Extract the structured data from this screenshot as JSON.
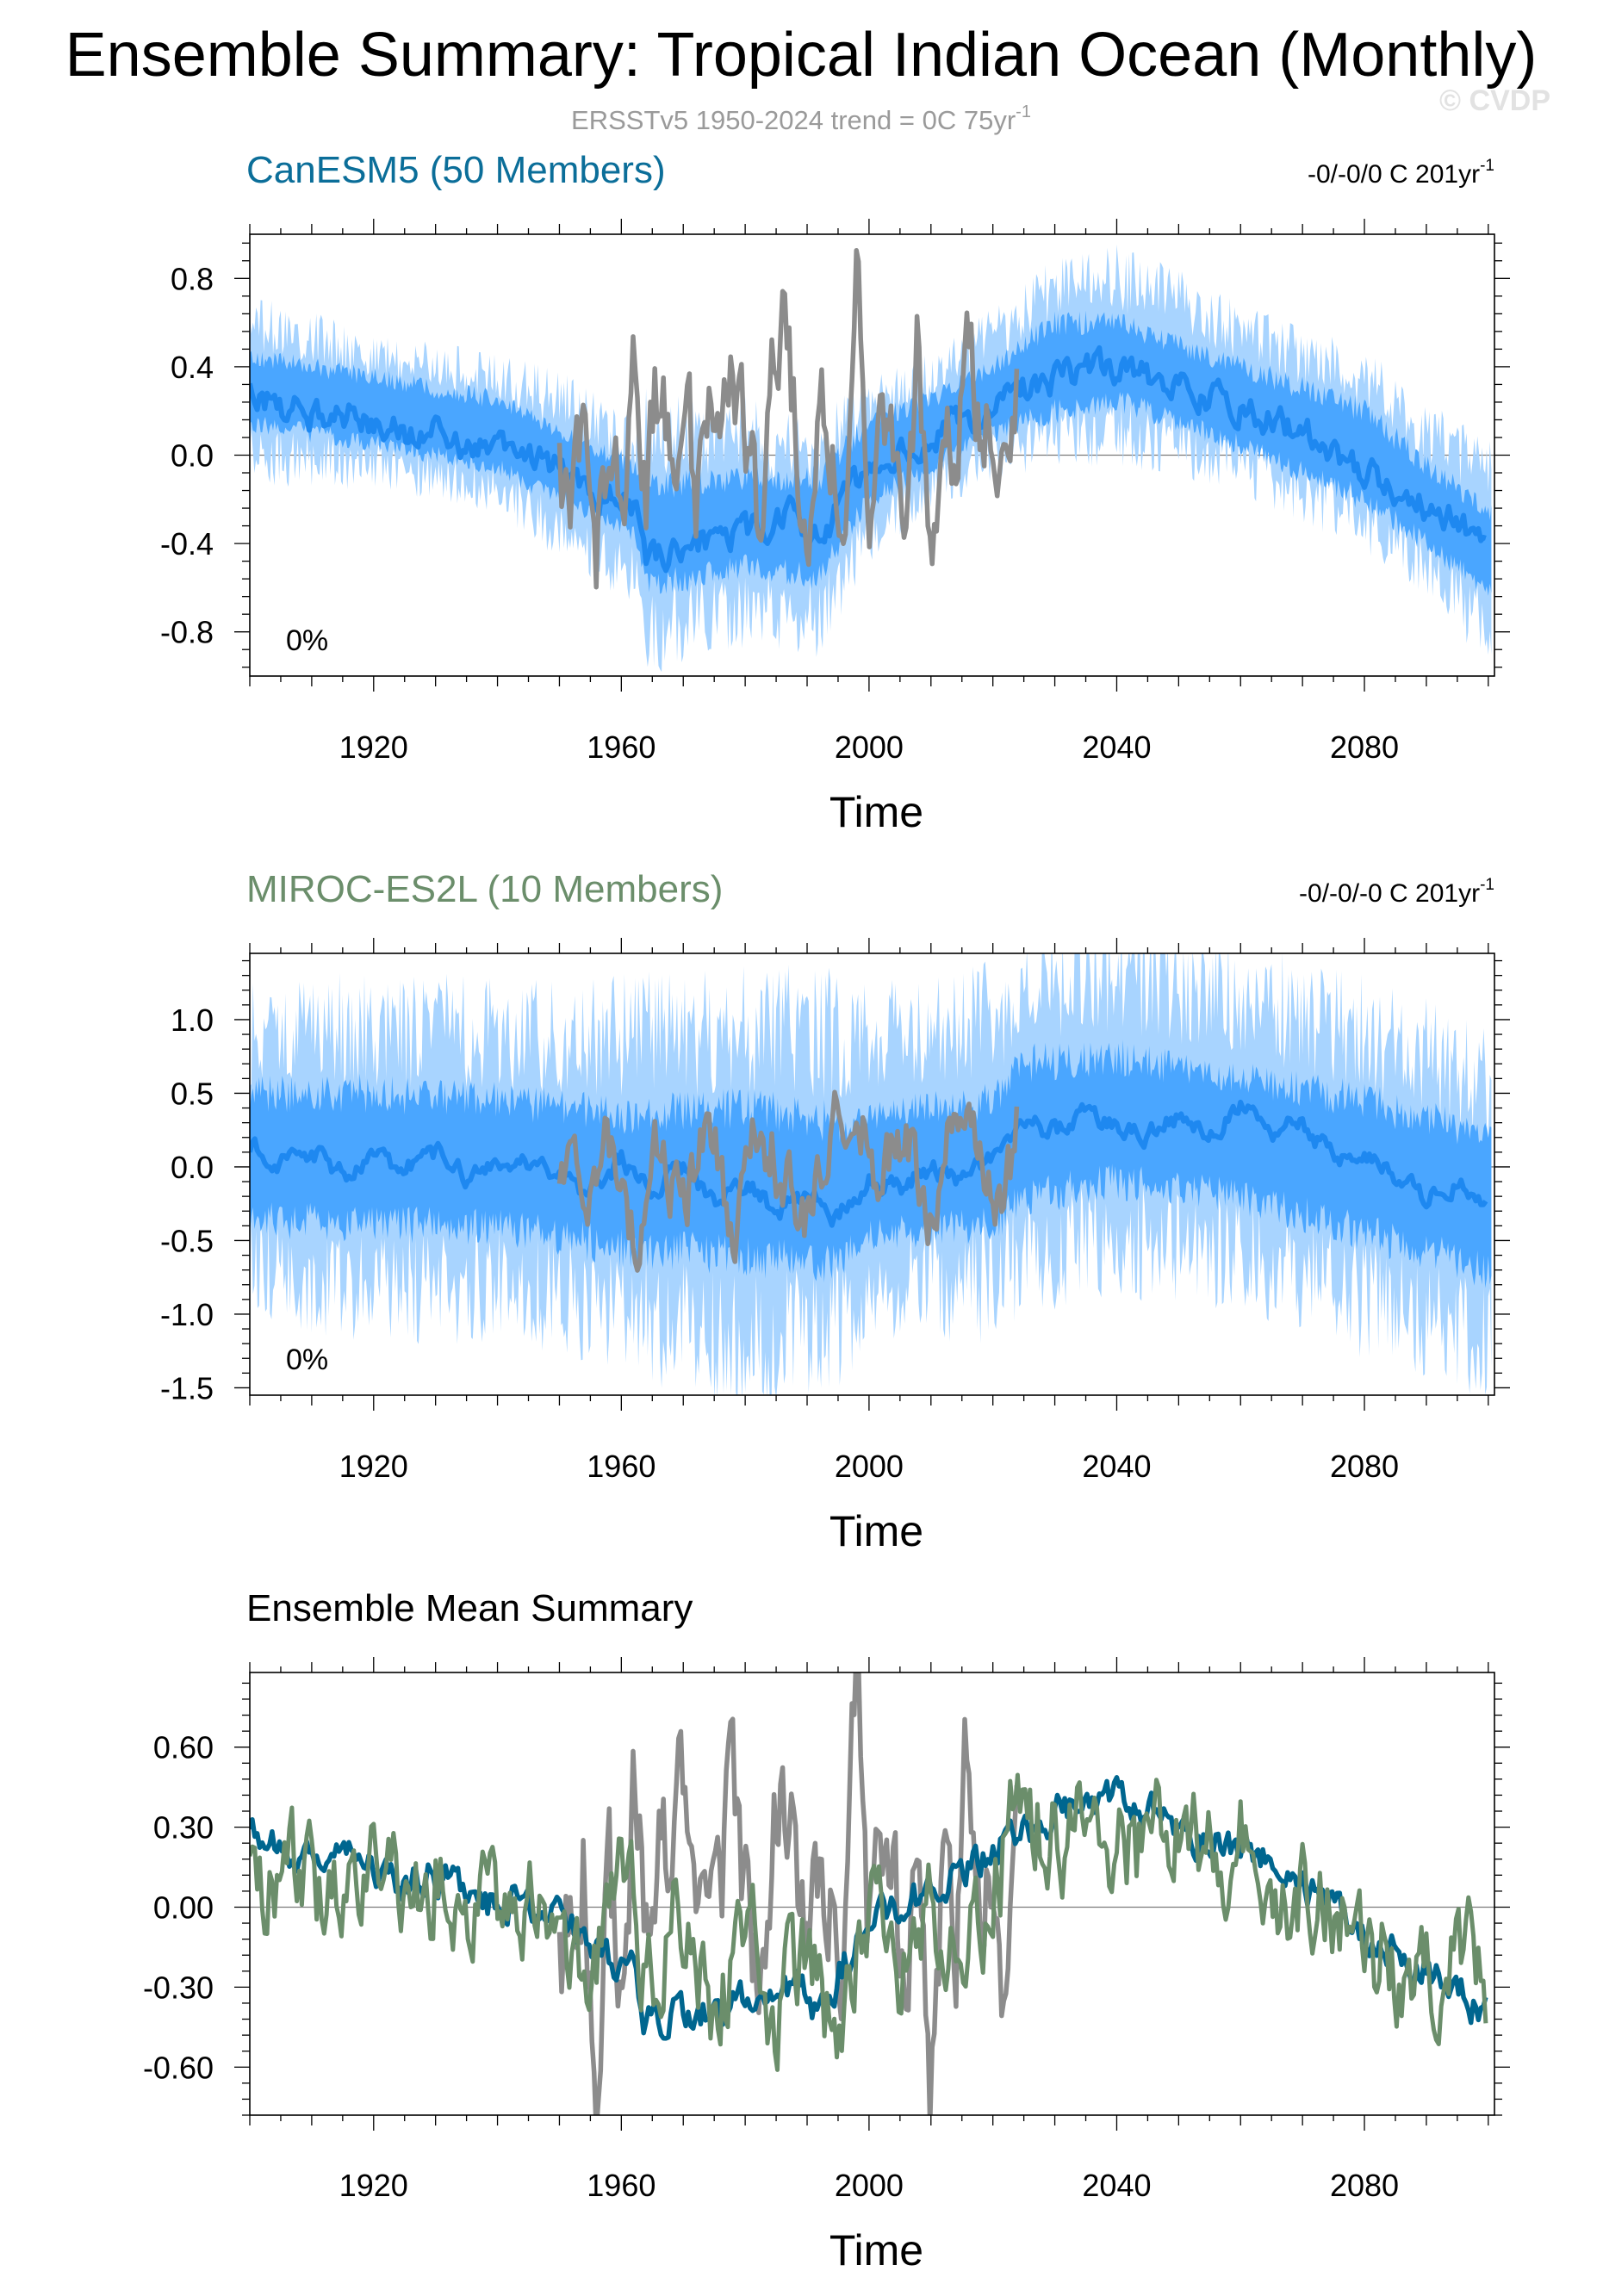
{
  "figure": {
    "title": "Ensemble Summary: Tropical Indian Ocean (Monthly)",
    "subtitle": "ERSSTv5 1950-2024 trend = 0C 75yr",
    "subtitle_sup": "-1",
    "watermark": "© CVDP"
  },
  "colors": {
    "obs": "#8c8c8c",
    "spread_outer": "#a8d4ff",
    "spread_inner": "#4aa6ff",
    "ens_mean": "#1e88f0",
    "canesm_title": "#0b6e99",
    "miroc_title": "#6b8e6b",
    "canesm_mean": "#00668f",
    "miroc_mean": "#6b8e6b",
    "black": "#000000"
  },
  "chart_data": [
    {
      "type": "line",
      "title": "CanESM5 (50 Members)",
      "trend_label": "-0/-0/0 C 201yr",
      "trend_sup": "-1",
      "percent_label": "0%",
      "xlabel": "Time",
      "ylabel": "",
      "xlim": [
        1900,
        2101
      ],
      "ylim": [
        -1.0,
        1.0
      ],
      "xticks": [
        1920,
        1960,
        2000,
        2040,
        2080
      ],
      "yticks": [
        -0.8,
        -0.4,
        0.0,
        0.4,
        0.8
      ],
      "ytick_labels": [
        "-0.8",
        "-0.4",
        "0.0",
        "0.4",
        "0.8"
      ],
      "series": [
        {
          "name": "Ensemble spread (full range)",
          "kind": "band",
          "x": [
            1900,
            1920,
            1940,
            1950,
            1962,
            1964,
            1980,
            1992,
            2000,
            2010,
            2020,
            2030,
            2040,
            2050,
            2060,
            2080,
            2090,
            2100
          ],
          "lower": [
            0.0,
            -0.05,
            -0.15,
            -0.35,
            -0.55,
            -0.8,
            -0.7,
            -0.75,
            -0.35,
            -0.15,
            0.0,
            0.1,
            0.1,
            0.05,
            -0.05,
            -0.3,
            -0.5,
            -0.8
          ],
          "upper": [
            0.6,
            0.45,
            0.35,
            0.25,
            0.05,
            0.1,
            0.1,
            0.0,
            0.25,
            0.35,
            0.55,
            0.75,
            0.8,
            0.7,
            0.55,
            0.35,
            0.1,
            -0.05
          ]
        },
        {
          "name": "Ensemble spread (10-90%)",
          "kind": "band",
          "x": [
            1900,
            1920,
            1940,
            1950,
            1962,
            1964,
            1980,
            1992,
            2000,
            2010,
            2020,
            2030,
            2040,
            2050,
            2060,
            2080,
            2090,
            2100
          ],
          "lower": [
            0.15,
            0.05,
            -0.05,
            -0.2,
            -0.35,
            -0.6,
            -0.5,
            -0.55,
            -0.2,
            -0.05,
            0.1,
            0.2,
            0.25,
            0.15,
            0.05,
            -0.2,
            -0.4,
            -0.6
          ],
          "upper": [
            0.45,
            0.35,
            0.25,
            0.1,
            -0.05,
            -0.15,
            -0.1,
            -0.1,
            0.15,
            0.25,
            0.4,
            0.6,
            0.6,
            0.5,
            0.4,
            0.2,
            -0.05,
            -0.25
          ]
        },
        {
          "name": "Ensemble mean",
          "kind": "line",
          "x": [
            1900,
            1905,
            1910,
            1915,
            1920,
            1925,
            1930,
            1935,
            1940,
            1945,
            1950,
            1955,
            1960,
            1962,
            1964,
            1968,
            1972,
            1976,
            1980,
            1984,
            1988,
            1992,
            1995,
            2000,
            2005,
            2010,
            2015,
            2020,
            2025,
            2030,
            2035,
            2040,
            2045,
            2050,
            2055,
            2060,
            2065,
            2070,
            2075,
            2080,
            2085,
            2090,
            2095,
            2100
          ],
          "y": [
            0.3,
            0.22,
            0.18,
            0.2,
            0.15,
            0.1,
            0.12,
            0.05,
            0.0,
            0.02,
            -0.05,
            -0.15,
            -0.2,
            -0.25,
            -0.45,
            -0.42,
            -0.38,
            -0.4,
            -0.35,
            -0.3,
            -0.28,
            -0.4,
            -0.25,
            -0.05,
            0.0,
            0.05,
            0.15,
            0.22,
            0.3,
            0.35,
            0.38,
            0.4,
            0.35,
            0.3,
            0.25,
            0.2,
            0.15,
            0.1,
            0.02,
            -0.08,
            -0.15,
            -0.22,
            -0.3,
            -0.42
          ]
        },
        {
          "name": "ERSSTv5 (observed)",
          "kind": "line",
          "x": [
            1950,
            1952,
            1954,
            1956,
            1958,
            1960,
            1962,
            1964,
            1966,
            1968,
            1970,
            1972,
            1974,
            1976,
            1978,
            1980,
            1982,
            1984,
            1986,
            1988,
            1990,
            1992,
            1994,
            1996,
            1998,
            2000,
            2002,
            2004,
            2006,
            2008,
            2010,
            2012,
            2014,
            2016,
            2018,
            2020,
            2022,
            2024
          ],
          "y": [
            -0.05,
            -0.2,
            0.15,
            -0.4,
            0.1,
            -0.3,
            0.45,
            -0.1,
            0.3,
            0.05,
            0.4,
            -0.2,
            0.25,
            -0.1,
            0.55,
            0.0,
            -0.3,
            0.2,
            0.6,
            0.1,
            -0.25,
            0.2,
            0.0,
            -0.2,
            0.8,
            -0.1,
            0.1,
            0.0,
            -0.3,
            0.55,
            -0.5,
            0.1,
            -0.2,
            0.7,
            0.0,
            0.3,
            -0.3,
            0.3
          ]
        }
      ]
    },
    {
      "type": "line",
      "title": "MIROC-ES2L (10 Members)",
      "trend_label": "-0/-0/-0 C 201yr",
      "trend_sup": "-1",
      "percent_label": "0%",
      "xlabel": "Time",
      "ylabel": "",
      "xlim": [
        1900,
        2101
      ],
      "ylim": [
        -1.55,
        1.45
      ],
      "xticks": [
        1920,
        1960,
        2000,
        2040,
        2080
      ],
      "yticks": [
        -1.5,
        -1.0,
        -0.5,
        0.0,
        0.5,
        1.0
      ],
      "ytick_labels": [
        "-1.5",
        "-1.0",
        "-0.5",
        "0.0",
        "0.5",
        "1.0"
      ],
      "series": [
        {
          "name": "Ensemble spread (full range)",
          "kind": "band",
          "x": [
            1900,
            1920,
            1940,
            1960,
            1980,
            1995,
            2000,
            2020,
            2025,
            2040,
            2060,
            2080,
            2100
          ],
          "lower": [
            -0.7,
            -0.85,
            -0.8,
            -1.0,
            -1.2,
            -1.1,
            -0.8,
            -0.8,
            -0.6,
            -0.5,
            -0.6,
            -0.9,
            -1.2
          ],
          "upper": [
            0.9,
            0.95,
            0.9,
            0.9,
            0.95,
            0.9,
            0.9,
            1.0,
            1.2,
            1.3,
            1.15,
            0.9,
            0.6
          ]
        },
        {
          "name": "Ensemble spread (10-90%)",
          "kind": "band",
          "x": [
            1900,
            1920,
            1940,
            1960,
            1980,
            1995,
            2000,
            2020,
            2025,
            2040,
            2060,
            2080,
            2100
          ],
          "lower": [
            -0.35,
            -0.4,
            -0.4,
            -0.55,
            -0.6,
            -0.65,
            -0.45,
            -0.4,
            -0.2,
            -0.1,
            -0.2,
            -0.45,
            -0.7
          ],
          "upper": [
            0.5,
            0.5,
            0.45,
            0.35,
            0.4,
            0.3,
            0.35,
            0.45,
            0.7,
            0.75,
            0.6,
            0.45,
            0.2
          ]
        },
        {
          "name": "Ensemble mean",
          "kind": "line",
          "x": [
            1900,
            1905,
            1910,
            1915,
            1920,
            1925,
            1930,
            1935,
            1940,
            1945,
            1950,
            1955,
            1960,
            1965,
            1970,
            1975,
            1980,
            1985,
            1990,
            1995,
            2000,
            2005,
            2010,
            2015,
            2020,
            2025,
            2030,
            2035,
            2040,
            2045,
            2050,
            2055,
            2060,
            2065,
            2070,
            2075,
            2080,
            2085,
            2090,
            2095,
            2100
          ],
          "y": [
            0.15,
            0.05,
            0.1,
            -0.05,
            0.05,
            0.0,
            0.1,
            -0.05,
            0.0,
            0.05,
            -0.1,
            -0.2,
            0.05,
            -0.15,
            0.0,
            -0.25,
            -0.1,
            -0.3,
            -0.2,
            -0.35,
            -0.05,
            -0.15,
            0.0,
            -0.1,
            0.05,
            0.3,
            0.25,
            0.35,
            0.3,
            0.2,
            0.35,
            0.25,
            0.4,
            0.2,
            0.3,
            0.05,
            0.1,
            -0.05,
            -0.2,
            -0.1,
            -0.3
          ]
        },
        {
          "name": "ERSSTv5 (observed)",
          "kind": "line",
          "x": [
            1950,
            1954,
            1958,
            1962,
            1966,
            1970,
            1974,
            1978,
            1982,
            1986,
            1990,
            1994,
            1998,
            2002,
            2006,
            2010,
            2014,
            2018,
            2022,
            2024
          ],
          "y": [
            0.05,
            -0.3,
            0.2,
            -0.45,
            0.15,
            -0.2,
            0.25,
            -0.4,
            0.3,
            0.0,
            -0.3,
            0.2,
            0.4,
            -0.1,
            0.15,
            -0.35,
            0.3,
            0.05,
            -0.3,
            0.25
          ]
        }
      ]
    },
    {
      "type": "line",
      "title": "Ensemble Mean Summary",
      "xlabel": "Time",
      "ylabel": "",
      "xlim": [
        1900,
        2101
      ],
      "ylim": [
        -0.78,
        0.88
      ],
      "xticks": [
        1920,
        1960,
        2000,
        2040,
        2080
      ],
      "yticks": [
        -0.6,
        -0.3,
        0.0,
        0.3,
        0.6
      ],
      "ytick_labels": [
        "-0.60",
        "-0.30",
        "0.00",
        "0.30",
        "0.60"
      ],
      "series": [
        {
          "name": "ERSSTv5 (observed)",
          "kind": "line",
          "x": [
            1950,
            1952,
            1954,
            1956,
            1958,
            1960,
            1962,
            1964,
            1966,
            1968,
            1970,
            1972,
            1974,
            1976,
            1978,
            1980,
            1982,
            1984,
            1986,
            1988,
            1990,
            1992,
            1994,
            1996,
            1998,
            2000,
            2002,
            2004,
            2006,
            2008,
            2010,
            2012,
            2014,
            2016,
            2018,
            2020,
            2022,
            2024
          ],
          "y": [
            -0.05,
            -0.25,
            0.2,
            -0.5,
            0.1,
            -0.3,
            0.45,
            -0.1,
            0.3,
            0.0,
            0.5,
            -0.2,
            0.3,
            -0.1,
            0.6,
            0.0,
            -0.35,
            0.2,
            0.6,
            0.1,
            -0.3,
            0.2,
            0.0,
            -0.2,
            0.8,
            -0.1,
            0.1,
            0.0,
            -0.3,
            0.55,
            -0.6,
            0.1,
            -0.2,
            0.7,
            0.0,
            0.3,
            -0.45,
            0.35
          ]
        },
        {
          "name": "CanESM5 ensemble mean",
          "kind": "line",
          "x": [
            1900,
            1905,
            1910,
            1915,
            1920,
            1925,
            1930,
            1935,
            1940,
            1945,
            1950,
            1955,
            1960,
            1962,
            1964,
            1968,
            1972,
            1976,
            1980,
            1984,
            1988,
            1992,
            1995,
            2000,
            2005,
            2010,
            2015,
            2020,
            2025,
            2030,
            2035,
            2040,
            2045,
            2050,
            2055,
            2060,
            2065,
            2070,
            2075,
            2080,
            2085,
            2090,
            2095,
            2100
          ],
          "y": [
            0.3,
            0.22,
            0.18,
            0.2,
            0.15,
            0.1,
            0.12,
            0.05,
            0.0,
            0.02,
            -0.05,
            -0.15,
            -0.2,
            -0.25,
            -0.45,
            -0.42,
            -0.38,
            -0.4,
            -0.35,
            -0.3,
            -0.28,
            -0.4,
            -0.25,
            -0.05,
            0.0,
            0.05,
            0.15,
            0.22,
            0.3,
            0.35,
            0.38,
            0.4,
            0.35,
            0.3,
            0.25,
            0.2,
            0.15,
            0.1,
            0.02,
            -0.08,
            -0.15,
            -0.22,
            -0.3,
            -0.42
          ]
        },
        {
          "name": "MIROC-ES2L ensemble mean",
          "kind": "line",
          "x": [
            1900,
            1905,
            1910,
            1915,
            1920,
            1925,
            1930,
            1935,
            1940,
            1945,
            1950,
            1955,
            1960,
            1965,
            1970,
            1975,
            1980,
            1985,
            1990,
            1995,
            2000,
            2005,
            2010,
            2015,
            2020,
            2025,
            2030,
            2035,
            2040,
            2045,
            2050,
            2055,
            2060,
            2065,
            2070,
            2075,
            2080,
            2085,
            2090,
            2095,
            2100
          ],
          "y": [
            0.2,
            0.05,
            0.15,
            -0.1,
            0.1,
            0.0,
            0.15,
            -0.05,
            0.0,
            0.1,
            -0.1,
            -0.25,
            0.1,
            -0.3,
            0.05,
            -0.35,
            -0.1,
            -0.4,
            -0.2,
            -0.5,
            -0.05,
            -0.2,
            0.05,
            -0.15,
            0.1,
            0.4,
            0.25,
            0.35,
            0.3,
            0.2,
            0.35,
            0.2,
            0.3,
            0.05,
            0.1,
            -0.05,
            -0.1,
            -0.2,
            -0.25,
            -0.15,
            -0.3
          ]
        }
      ]
    }
  ]
}
